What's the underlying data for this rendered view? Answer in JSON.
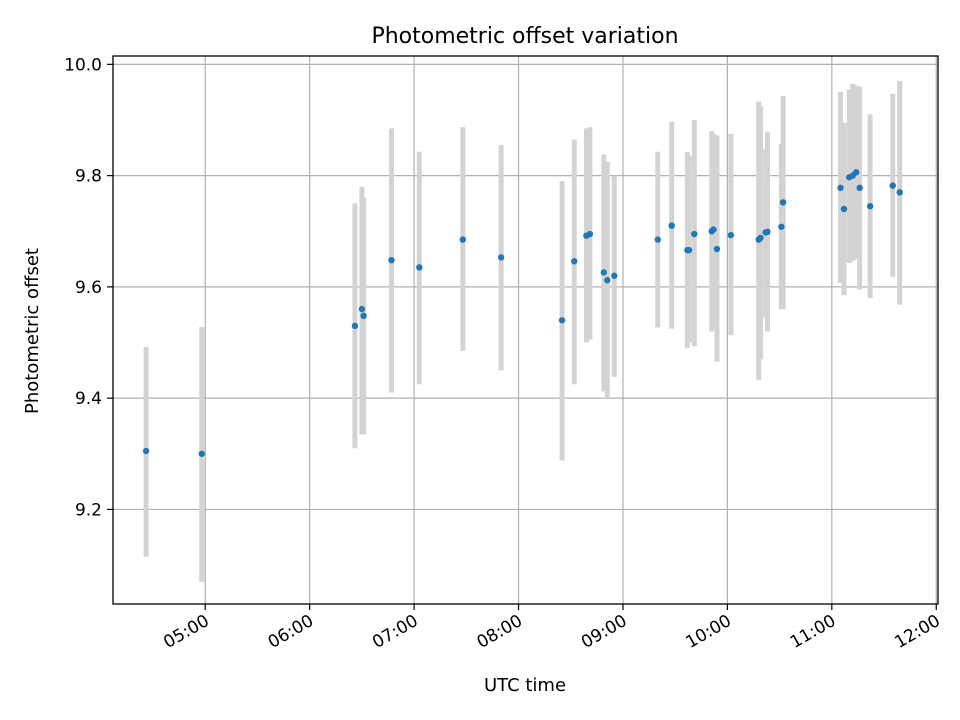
{
  "chart_data": {
    "type": "scatter",
    "title": "Photometric offset variation",
    "xlabel": "UTC time",
    "ylabel": "Photometric offset",
    "x_unit": "UTC time (HH:MM)",
    "x_ticks": [
      "05:00",
      "06:00",
      "07:00",
      "08:00",
      "09:00",
      "10:00",
      "11:00",
      "12:00"
    ],
    "y_ticks": [
      "9.2",
      "9.4",
      "9.6",
      "9.8",
      "10.0"
    ],
    "xlim": [
      "04:07",
      "12:01"
    ],
    "ylim": [
      9.03,
      10.015
    ],
    "grid": true,
    "colors": {
      "marker": "#1f77b4",
      "errorbar": "#d3d3d3",
      "grid": "#b0b0b0"
    },
    "points": [
      {
        "x": "04:26",
        "y": 9.305,
        "lo": 9.115,
        "hi": 9.492
      },
      {
        "x": "04:58",
        "y": 9.3,
        "lo": 9.07,
        "hi": 9.528
      },
      {
        "x": "06:26",
        "y": 9.53,
        "lo": 9.31,
        "hi": 9.75
      },
      {
        "x": "06:30",
        "y": 9.56,
        "lo": 9.335,
        "hi": 9.78
      },
      {
        "x": "06:31",
        "y": 9.548,
        "lo": 9.335,
        "hi": 9.76
      },
      {
        "x": "06:47",
        "y": 9.648,
        "lo": 9.41,
        "hi": 9.885
      },
      {
        "x": "07:03",
        "y": 9.635,
        "lo": 9.425,
        "hi": 9.843
      },
      {
        "x": "07:28",
        "y": 9.685,
        "lo": 9.485,
        "hi": 9.887
      },
      {
        "x": "07:50",
        "y": 9.653,
        "lo": 9.45,
        "hi": 9.855
      },
      {
        "x": "08:25",
        "y": 9.54,
        "lo": 9.288,
        "hi": 9.79
      },
      {
        "x": "08:32",
        "y": 9.646,
        "lo": 9.425,
        "hi": 9.865
      },
      {
        "x": "08:39",
        "y": 9.692,
        "lo": 9.5,
        "hi": 9.885
      },
      {
        "x": "08:41",
        "y": 9.695,
        "lo": 9.505,
        "hi": 9.887
      },
      {
        "x": "08:49",
        "y": 9.626,
        "lo": 9.412,
        "hi": 9.838
      },
      {
        "x": "08:51",
        "y": 9.612,
        "lo": 9.4,
        "hi": 9.825
      },
      {
        "x": "08:55",
        "y": 9.62,
        "lo": 9.438,
        "hi": 9.8
      },
      {
        "x": "09:20",
        "y": 9.685,
        "lo": 9.527,
        "hi": 9.843
      },
      {
        "x": "09:28",
        "y": 9.71,
        "lo": 9.525,
        "hi": 9.897
      },
      {
        "x": "09:37",
        "y": 9.666,
        "lo": 9.49,
        "hi": 9.843
      },
      {
        "x": "09:38",
        "y": 9.666,
        "lo": 9.5,
        "hi": 9.835
      },
      {
        "x": "09:41",
        "y": 9.695,
        "lo": 9.493,
        "hi": 9.9
      },
      {
        "x": "09:51",
        "y": 9.7,
        "lo": 9.52,
        "hi": 9.88
      },
      {
        "x": "09:52",
        "y": 9.703,
        "lo": 9.53,
        "hi": 9.875
      },
      {
        "x": "09:54",
        "y": 9.668,
        "lo": 9.465,
        "hi": 9.872
      },
      {
        "x": "10:02",
        "y": 9.693,
        "lo": 9.513,
        "hi": 9.875
      },
      {
        "x": "10:18",
        "y": 9.685,
        "lo": 9.433,
        "hi": 9.933
      },
      {
        "x": "10:19",
        "y": 9.688,
        "lo": 9.47,
        "hi": 9.925
      },
      {
        "x": "10:22",
        "y": 9.698,
        "lo": 9.545,
        "hi": 9.848
      },
      {
        "x": "10:23",
        "y": 9.699,
        "lo": 9.52,
        "hi": 9.878
      },
      {
        "x": "10:31",
        "y": 9.708,
        "lo": 9.56,
        "hi": 9.857
      },
      {
        "x": "10:32",
        "y": 9.752,
        "lo": 9.56,
        "hi": 9.943
      },
      {
        "x": "11:05",
        "y": 9.778,
        "lo": 9.607,
        "hi": 9.95
      },
      {
        "x": "11:07",
        "y": 9.74,
        "lo": 9.585,
        "hi": 9.895
      },
      {
        "x": "11:10",
        "y": 9.797,
        "lo": 9.643,
        "hi": 9.955
      },
      {
        "x": "11:12",
        "y": 9.8,
        "lo": 9.647,
        "hi": 9.965
      },
      {
        "x": "11:14",
        "y": 9.806,
        "lo": 9.65,
        "hi": 9.962
      },
      {
        "x": "11:16",
        "y": 9.778,
        "lo": 9.595,
        "hi": 9.96
      },
      {
        "x": "11:22",
        "y": 9.745,
        "lo": 9.58,
        "hi": 9.91
      },
      {
        "x": "11:35",
        "y": 9.782,
        "lo": 9.618,
        "hi": 9.947
      },
      {
        "x": "11:39",
        "y": 9.77,
        "lo": 9.568,
        "hi": 9.97
      }
    ]
  }
}
